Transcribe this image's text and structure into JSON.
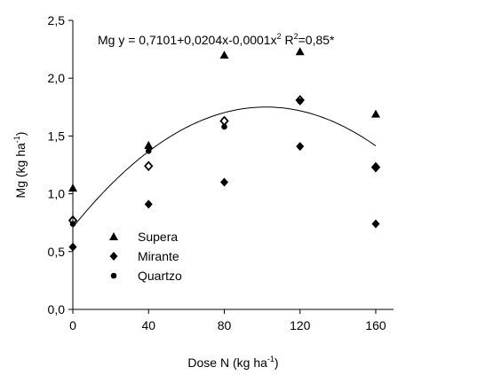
{
  "chart_data": {
    "type": "scatter",
    "annotation": [
      "Mg y = 0,7101+0,0204x-0,0001x",
      "2",
      " R",
      "2",
      "=0,85*"
    ],
    "fit": {
      "coefficients": [
        0.7101,
        0.0204,
        -0.0001
      ],
      "color": "#000000"
    },
    "x_label": [
      "Dose N (kg ha",
      "-1",
      ")"
    ],
    "y_label": [
      "Mg (kg ha",
      "-1",
      ")"
    ],
    "x": [
      0,
      40,
      80,
      120,
      160
    ],
    "series": [
      {
        "name": "Supera",
        "marker": "triangle",
        "color": "#000000",
        "values": [
          1.05,
          1.42,
          2.2,
          2.23,
          1.69
        ]
      },
      {
        "name": "Mirante",
        "marker": "diamond",
        "color": "#000000",
        "values": [
          0.54,
          0.91,
          1.1,
          1.41,
          0.74
        ]
      },
      {
        "name": "Quartzo",
        "marker": "circle",
        "color": "#000000",
        "values": [
          0.74,
          1.37,
          1.58,
          1.8,
          1.23
        ]
      },
      {
        "marker": "diamond-open",
        "color": "#000000",
        "values": [
          0.77,
          1.24,
          1.63,
          1.81,
          1.23
        ]
      }
    ],
    "xlim": [
      0,
      160
    ],
    "xticks": [
      0,
      40,
      80,
      120,
      160
    ],
    "ylim": [
      0,
      2.5
    ],
    "yticks": [
      {
        "value": 0,
        "label": "0,0"
      },
      {
        "value": 0.5,
        "label": "0,5"
      },
      {
        "value": 1,
        "label": "1,0"
      },
      {
        "value": 1.5,
        "label": "1,5"
      },
      {
        "value": 2,
        "label": "2,0"
      },
      {
        "value": 2.5,
        "label": "2,5"
      }
    ],
    "legend": "left"
  }
}
